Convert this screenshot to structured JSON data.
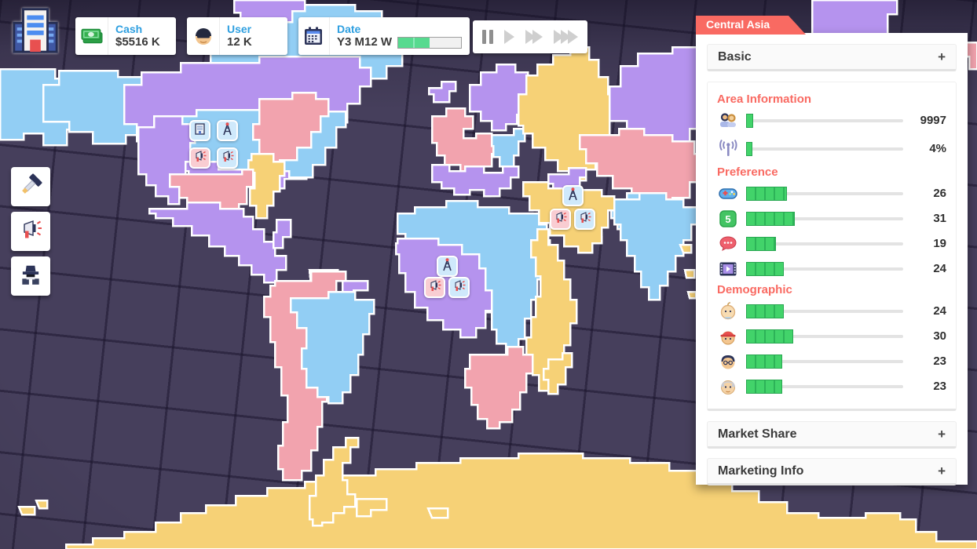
{
  "hud": {
    "cash_label": "Cash",
    "cash_value": "$5516 K",
    "user_label": "User",
    "user_value": "12 K",
    "date_label": "Date",
    "date_value": "Y3 M12 W",
    "date_progress_pct": 50,
    "speed_modes": [
      "pause",
      "play",
      "fast-forward",
      "fastest"
    ],
    "active_speed": "pause"
  },
  "side_tools": [
    {
      "icon": "hammer",
      "meaning": "build"
    },
    {
      "icon": "megaphone",
      "meaning": "marketing"
    },
    {
      "icon": "spy",
      "meaning": "espionage"
    }
  ],
  "map_overlays": [
    {
      "area": "north-america",
      "icons": [
        "office-building",
        "antenna-tower",
        "megaphone",
        "megaphone"
      ]
    },
    {
      "area": "middle-east",
      "icons": [
        "antenna-tower",
        "megaphone",
        "megaphone"
      ]
    },
    {
      "area": "africa",
      "icons": [
        "antenna-tower",
        "megaphone",
        "megaphone"
      ]
    }
  ],
  "panel": {
    "region_name": "Central Asia",
    "basic": {
      "label": "Basic",
      "toggle": "+"
    },
    "area_information": {
      "title": "Area Information",
      "rows": [
        {
          "icon": "population",
          "value": "9997",
          "fill_pct": 4.5
        },
        {
          "icon": "signal-coverage",
          "value": "4%",
          "fill_pct": 4
        }
      ]
    },
    "preference": {
      "title": "Preference",
      "rows": [
        {
          "icon": "game-controller",
          "value": "26",
          "fill_pct": 26
        },
        {
          "icon": "sns-app",
          "value": "31",
          "fill_pct": 31
        },
        {
          "icon": "chat-app",
          "value": "19",
          "fill_pct": 19
        },
        {
          "icon": "video-app",
          "value": "24",
          "fill_pct": 24
        }
      ]
    },
    "demographic": {
      "title": "Demographic",
      "rows": [
        {
          "icon": "baby",
          "value": "24",
          "fill_pct": 24
        },
        {
          "icon": "kid",
          "value": "30",
          "fill_pct": 30
        },
        {
          "icon": "adult",
          "value": "23",
          "fill_pct": 23
        },
        {
          "icon": "senior",
          "value": "23",
          "fill_pct": 23
        }
      ]
    },
    "market_share": {
      "label": "Market Share",
      "toggle": "+"
    },
    "marketing_info": {
      "label": "Marketing Info",
      "toggle": "+"
    }
  },
  "colors": {
    "accent_red": "#f96a62",
    "bar_green": "#42d36a",
    "hud_blue": "#2e9fe0",
    "ocean": "#463f5c",
    "land_purple": "#b593ee",
    "land_blue": "#92cef4",
    "land_pink": "#f2a3ae",
    "land_yellow": "#f6d176"
  }
}
